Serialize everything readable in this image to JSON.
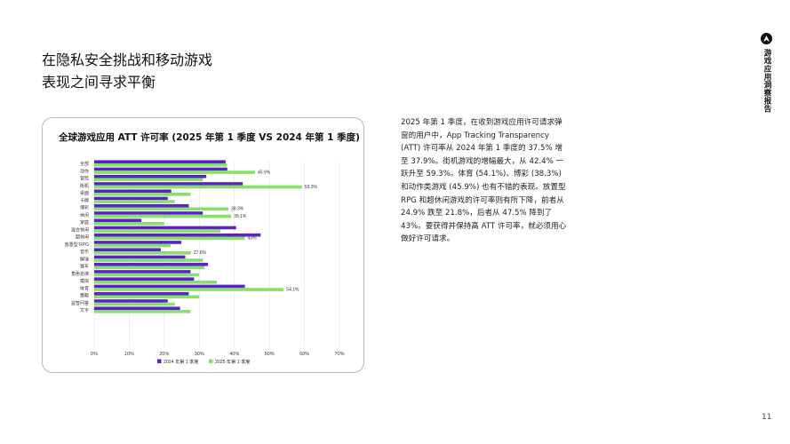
{
  "page": {
    "title_line1": "在隐私安全挑战和移动游戏",
    "title_line2": "表现之间寻求平衡",
    "body": "2025 年第 1 季度，在收到游戏应用许可请求弹窗的用户中，App Tracking Transparency (ATT) 许可率从 2024 年第 1 季度的 37.5% 增至 37.9%。街机游戏的增幅最大，从 42.4% 一跃升至 59.3%。体育 (54.1%)、博彩 (38.3%) 和动作类游戏 (45.9%) 也有不错的表现。放置型 RPG 和超休闲游戏的许可率则有所下降，前者从 24.9% 跌至 21.8%，后者从 47.5% 降到了 43%。要获得并保持高 ATT 许可率，就必须用心做好许可请求。",
    "brand": "游戏应用洞察报告",
    "page_number": "11"
  },
  "colors": {
    "series_2024": "#5b22c7",
    "series_2025": "#86e06a",
    "grid": "#e3e3e3",
    "axis_text": "#333333"
  },
  "chart_data": {
    "type": "bar",
    "orientation": "horizontal",
    "title": "全球游戏应用 ATT 许可率 (2025 年第 1 季度 VS 2024 年第 1 季度)",
    "categories": [
      "全部",
      "动作",
      "冒险",
      "街机",
      "桌面",
      "卡牌",
      "博彩",
      "休闲",
      "家庭",
      "混合休闲",
      "超休闲",
      "放置型 RPG",
      "音乐",
      "解谜",
      "赛车",
      "角色扮演",
      "模拟",
      "体育",
      "策略",
      "益智问答",
      "文字"
    ],
    "series": [
      {
        "name": "2024 年第 1 季度",
        "values": [
          37.5,
          38,
          32,
          42.4,
          22,
          21,
          27,
          31,
          13.5,
          40.5,
          47.5,
          24.9,
          19,
          26,
          32.5,
          27.5,
          28.5,
          43,
          27,
          21,
          24.5
        ]
      },
      {
        "name": "2025 年第 1 季度",
        "values": [
          37.9,
          45.9,
          31,
          59.3,
          27.5,
          23,
          38.3,
          39.1,
          20,
          36,
          43,
          21.8,
          27.6,
          31,
          31.5,
          30,
          35,
          54.1,
          30,
          23,
          27.5
        ]
      }
    ],
    "data_labels": {
      "1": "45.9%",
      "3": "59.3%",
      "6": "38.3%",
      "7": "39.1%",
      "10": "43%",
      "12": "27.6%",
      "17": "54.1%"
    },
    "xlim": [
      0,
      70
    ],
    "xticks": [
      "0%",
      "10%",
      "20%",
      "30%",
      "40%",
      "50%",
      "60%",
      "70%"
    ],
    "grid": true,
    "legend_position": "bottom"
  }
}
